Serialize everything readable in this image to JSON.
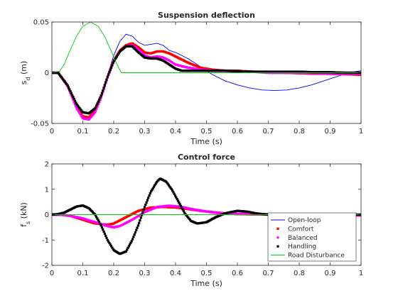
{
  "colors": {
    "open_loop": "#0000ff",
    "comfort": "#ff0000",
    "balanced": "#ff00ff",
    "handling": "#000000",
    "road": "#00cc00",
    "axis": "#262626"
  },
  "chart_data": [
    {
      "type": "line",
      "title": "Suspension deflection",
      "xlabel": "Time (s)",
      "ylabel_main": "s",
      "ylabel_sub": "d",
      "ylabel_unit": " (m)",
      "xlim": [
        0,
        1
      ],
      "ylim": [
        -0.05,
        0.05
      ],
      "xticks": [
        0,
        0.1,
        0.2,
        0.3,
        0.4,
        0.5,
        0.6,
        0.7,
        0.8,
        0.9,
        1
      ],
      "xtick_labels": [
        "0",
        "0.1",
        "0.2",
        "0.3",
        "0.4",
        "0.5",
        "0.6",
        "0.7",
        "0.8",
        "0.9",
        "1"
      ],
      "yticks": [
        -0.05,
        0,
        0.05
      ],
      "ytick_labels": [
        "-0.05",
        "0",
        "0.05"
      ],
      "series": [
        {
          "name": "Open-loop",
          "color_key": "open_loop",
          "marker": "none",
          "x": [
            0,
            0.02,
            0.05,
            0.08,
            0.1,
            0.12,
            0.14,
            0.16,
            0.18,
            0.2,
            0.22,
            0.24,
            0.26,
            0.28,
            0.3,
            0.32,
            0.34,
            0.36,
            0.38,
            0.4,
            0.44,
            0.48,
            0.52,
            0.56,
            0.6,
            0.64,
            0.68,
            0.72,
            0.76,
            0.8,
            0.84,
            0.88,
            0.92,
            0.96,
            1.0
          ],
          "y": [
            0,
            0,
            -0.012,
            -0.03,
            -0.039,
            -0.041,
            -0.036,
            -0.022,
            -0.003,
            0.017,
            0.031,
            0.038,
            0.036,
            0.03,
            0.027,
            0.028,
            0.029,
            0.027,
            0.022,
            0.02,
            0.014,
            0.006,
            -0.002,
            -0.008,
            -0.012,
            -0.015,
            -0.017,
            -0.0175,
            -0.017,
            -0.015,
            -0.012,
            -0.008,
            -0.004,
            0,
            0.002
          ]
        },
        {
          "name": "Comfort",
          "color_key": "comfort",
          "marker": "square",
          "x": [
            0,
            0.02,
            0.05,
            0.08,
            0.1,
            0.12,
            0.14,
            0.16,
            0.18,
            0.2,
            0.22,
            0.24,
            0.26,
            0.28,
            0.3,
            0.32,
            0.34,
            0.36,
            0.38,
            0.4,
            0.44,
            0.48,
            0.52,
            0.56,
            0.6,
            0.65,
            0.7,
            0.75,
            0.8,
            0.85,
            0.9,
            0.95,
            1.0
          ],
          "y": [
            0,
            0,
            -0.012,
            -0.033,
            -0.043,
            -0.044,
            -0.037,
            -0.023,
            -0.004,
            0.012,
            0.022,
            0.027,
            0.029,
            0.025,
            0.02,
            0.019,
            0.021,
            0.021,
            0.019,
            0.016,
            0.01,
            0.005,
            0.003,
            0.002,
            0.002,
            0.001,
            0.001,
            0,
            -0.0005,
            -0.001,
            -0.001,
            -0.0015,
            -0.002
          ]
        },
        {
          "name": "Balanced",
          "color_key": "balanced",
          "marker": "diamond",
          "x": [
            0,
            0.02,
            0.05,
            0.08,
            0.1,
            0.12,
            0.14,
            0.16,
            0.18,
            0.2,
            0.22,
            0.24,
            0.26,
            0.28,
            0.3,
            0.32,
            0.34,
            0.36,
            0.38,
            0.4,
            0.44,
            0.48,
            0.52,
            0.56,
            0.6,
            0.65,
            0.7,
            0.75,
            0.8,
            0.85,
            0.9,
            0.95,
            1.0
          ],
          "y": [
            0,
            0,
            -0.013,
            -0.035,
            -0.045,
            -0.046,
            -0.039,
            -0.024,
            -0.005,
            0.011,
            0.021,
            0.026,
            0.027,
            0.023,
            0.017,
            0.015,
            0.016,
            0.015,
            0.012,
            0.008,
            0.005,
            0.003,
            0.002,
            0.002,
            0.001,
            0.001,
            0,
            0,
            0,
            -0.0005,
            -0.001,
            -0.001,
            -0.001
          ]
        },
        {
          "name": "Handling",
          "color_key": "handling",
          "marker": "square",
          "x": [
            0,
            0.02,
            0.05,
            0.08,
            0.1,
            0.12,
            0.14,
            0.16,
            0.18,
            0.2,
            0.22,
            0.24,
            0.26,
            0.28,
            0.3,
            0.32,
            0.34,
            0.36,
            0.38,
            0.4,
            0.42,
            0.44,
            0.48,
            0.52,
            0.56,
            0.6,
            0.65,
            0.7,
            0.75,
            0.8,
            0.85,
            0.9,
            0.95,
            1.0
          ],
          "y": [
            0,
            0,
            -0.012,
            -0.031,
            -0.039,
            -0.04,
            -0.035,
            -0.022,
            -0.004,
            0.011,
            0.021,
            0.026,
            0.026,
            0.02,
            0.015,
            0.014,
            0.014,
            0.012,
            0.008,
            0.004,
            0.002,
            0.002,
            0.002,
            0.002,
            0.002,
            0.0015,
            0.001,
            0.001,
            0.001,
            0.001,
            0.0005,
            0.0005,
            0,
            0
          ]
        },
        {
          "name": "Road Disturbance",
          "color_key": "road",
          "marker": "none",
          "x": [
            0,
            0.025,
            0.04,
            0.06,
            0.08,
            0.1,
            0.125,
            0.15,
            0.17,
            0.19,
            0.21,
            0.225,
            0.25,
            0.3,
            0.4,
            0.5,
            0.6,
            0.7,
            0.8,
            0.9,
            1.0
          ],
          "y": [
            0,
            0.0015,
            0.0084,
            0.0228,
            0.0362,
            0.0457,
            0.05,
            0.0457,
            0.0362,
            0.0228,
            0.0084,
            0,
            0,
            0,
            0,
            0,
            0,
            0,
            0,
            0,
            0
          ]
        }
      ]
    },
    {
      "type": "line",
      "title": "Control force",
      "xlabel": "Time (s)",
      "ylabel_main": "f",
      "ylabel_sub": "s",
      "ylabel_unit": " (kN)",
      "xlim": [
        0,
        1
      ],
      "ylim": [
        -2,
        2
      ],
      "xticks": [
        0,
        0.1,
        0.2,
        0.3,
        0.4,
        0.5,
        0.6,
        0.7,
        0.8,
        0.9,
        1
      ],
      "xtick_labels": [
        "0",
        "0.1",
        "0.2",
        "0.3",
        "0.4",
        "0.5",
        "0.6",
        "0.7",
        "0.8",
        "0.9",
        "1"
      ],
      "yticks": [
        -2,
        -1,
        0,
        1,
        2
      ],
      "ytick_labels": [
        "-2",
        "-1",
        "0",
        "1",
        "2"
      ],
      "legend_position": "bottom-right",
      "series": [
        {
          "name": "Open-loop",
          "color_key": "open_loop",
          "marker": "none",
          "x": [
            0,
            1
          ],
          "y": [
            0,
            0
          ]
        },
        {
          "name": "Comfort",
          "color_key": "comfort",
          "marker": "square",
          "x": [
            0,
            0.03,
            0.06,
            0.1,
            0.14,
            0.18,
            0.2,
            0.24,
            0.28,
            0.32,
            0.36,
            0.4,
            0.44,
            0.48,
            0.52,
            0.56,
            0.6,
            0.65,
            0.7,
            0.75,
            0.8,
            0.85,
            0.9,
            0.95,
            1.0
          ],
          "y": [
            0,
            0,
            -0.05,
            -0.2,
            -0.35,
            -0.4,
            -0.35,
            -0.1,
            0.15,
            0.28,
            0.3,
            0.28,
            0.22,
            0.15,
            0.1,
            0.05,
            0.02,
            0.01,
            0,
            -0.01,
            -0.02,
            -0.02,
            -0.03,
            -0.03,
            -0.03
          ]
        },
        {
          "name": "Balanced",
          "color_key": "balanced",
          "marker": "diamond",
          "x": [
            0,
            0.03,
            0.06,
            0.1,
            0.14,
            0.18,
            0.2,
            0.22,
            0.26,
            0.3,
            0.34,
            0.38,
            0.42,
            0.46,
            0.5,
            0.54,
            0.58,
            0.62,
            0.66,
            0.7,
            0.75,
            0.8,
            0.85,
            0.9,
            0.95,
            1.0
          ],
          "y": [
            0,
            0,
            -0.05,
            -0.15,
            -0.3,
            -0.45,
            -0.5,
            -0.45,
            -0.2,
            0.1,
            0.3,
            0.35,
            0.3,
            0.2,
            0.12,
            0.06,
            0.04,
            0.03,
            0.02,
            0.01,
            0,
            0,
            -0.01,
            -0.01,
            -0.02,
            -0.02
          ]
        },
        {
          "name": "Handling",
          "color_key": "handling",
          "marker": "square",
          "x": [
            0,
            0.02,
            0.04,
            0.06,
            0.08,
            0.1,
            0.12,
            0.14,
            0.16,
            0.18,
            0.2,
            0.22,
            0.24,
            0.26,
            0.28,
            0.3,
            0.32,
            0.34,
            0.35,
            0.37,
            0.39,
            0.41,
            0.43,
            0.45,
            0.47,
            0.5,
            0.53,
            0.56,
            0.6,
            0.63,
            0.66,
            0.7,
            0.75,
            0.8,
            0.85,
            0.9,
            0.95,
            1.0
          ],
          "y": [
            0,
            0.02,
            0.08,
            0.2,
            0.32,
            0.36,
            0.25,
            0,
            -0.45,
            -1.0,
            -1.4,
            -1.55,
            -1.45,
            -1.0,
            -0.4,
            0.3,
            0.9,
            1.3,
            1.42,
            1.3,
            0.95,
            0.5,
            0.05,
            -0.25,
            -0.35,
            -0.3,
            -0.1,
            0.05,
            0.15,
            0.12,
            0.05,
            0,
            0,
            0,
            0,
            0,
            0,
            0
          ]
        },
        {
          "name": "Road Disturbance",
          "color_key": "road",
          "marker": "none",
          "x": [
            0,
            1
          ],
          "y": [
            0,
            0
          ]
        }
      ]
    }
  ]
}
